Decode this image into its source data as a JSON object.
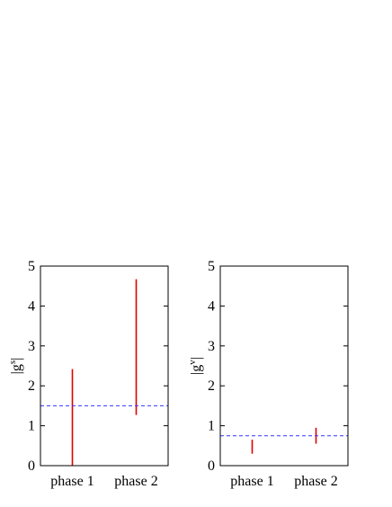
{
  "chart_data": [
    {
      "type": "range",
      "ylabel_parts": [
        "|g",
        "s",
        "|"
      ],
      "categories": [
        "phase 1",
        "phase 2"
      ],
      "low": [
        0,
        1.27
      ],
      "high": [
        2.42,
        4.67
      ],
      "color": "#e00000",
      "reference_line": 1.5,
      "reference_color": "#3333ff",
      "ylim": [
        0,
        5
      ],
      "yticks": [
        0,
        1,
        2,
        3,
        4,
        5
      ]
    },
    {
      "type": "range",
      "ylabel_parts": [
        "|g",
        "v",
        "|"
      ],
      "categories": [
        "phase 1",
        "phase 2"
      ],
      "low": [
        0.3,
        0.55
      ],
      "high": [
        0.65,
        0.95
      ],
      "color": "#e00000",
      "reference_line": 0.75,
      "reference_color": "#3333ff",
      "ylim": [
        0,
        5
      ],
      "yticks": [
        0,
        1,
        2,
        3,
        4,
        5
      ]
    }
  ]
}
